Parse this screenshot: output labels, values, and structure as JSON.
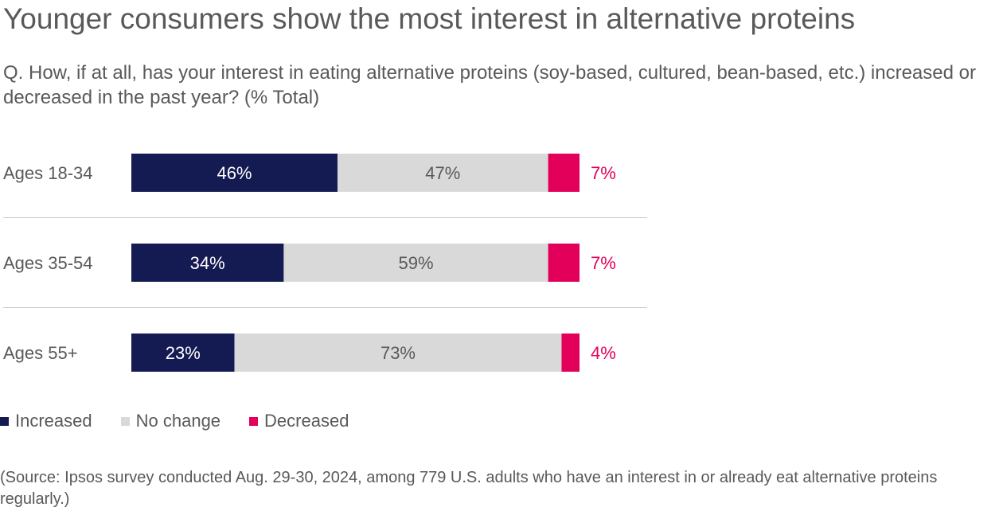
{
  "title": "Younger consumers show the most interest in alternative proteins",
  "subtitle": "Q. How, if at all, has your interest in eating alternative proteins (soy-based, cultured, bean-based, etc.) increased or decreased in the past year? (% Total)",
  "source": "(Source: Ipsos survey conducted Aug. 29-30, 2024, among 779 U.S. adults who have an interest in or already eat alternative proteins regularly.)",
  "colors": {
    "increased": "#141A52",
    "no_change": "#D9D9D9",
    "decreased": "#E2005A",
    "label_dark": "#595959",
    "divider": "#C8C8C8"
  },
  "chart_data": {
    "type": "bar",
    "orientation": "horizontal",
    "stacked": true,
    "categories": [
      "Ages 18-34",
      "Ages 35-54",
      "Ages 55+"
    ],
    "series": [
      {
        "name": "Increased",
        "key": "increased",
        "values": [
          46,
          34,
          23
        ]
      },
      {
        "name": "No change",
        "key": "no_change",
        "values": [
          47,
          59,
          73
        ]
      },
      {
        "name": "Decreased",
        "key": "decreased",
        "values": [
          7,
          7,
          4
        ]
      }
    ],
    "value_labels": [
      [
        "46%",
        "47%",
        "7%"
      ],
      [
        "34%",
        "59%",
        "7%"
      ],
      [
        "23%",
        "73%",
        "4%"
      ]
    ],
    "xlim": [
      0,
      100
    ],
    "legend_position": "bottom-left",
    "grid": false
  }
}
